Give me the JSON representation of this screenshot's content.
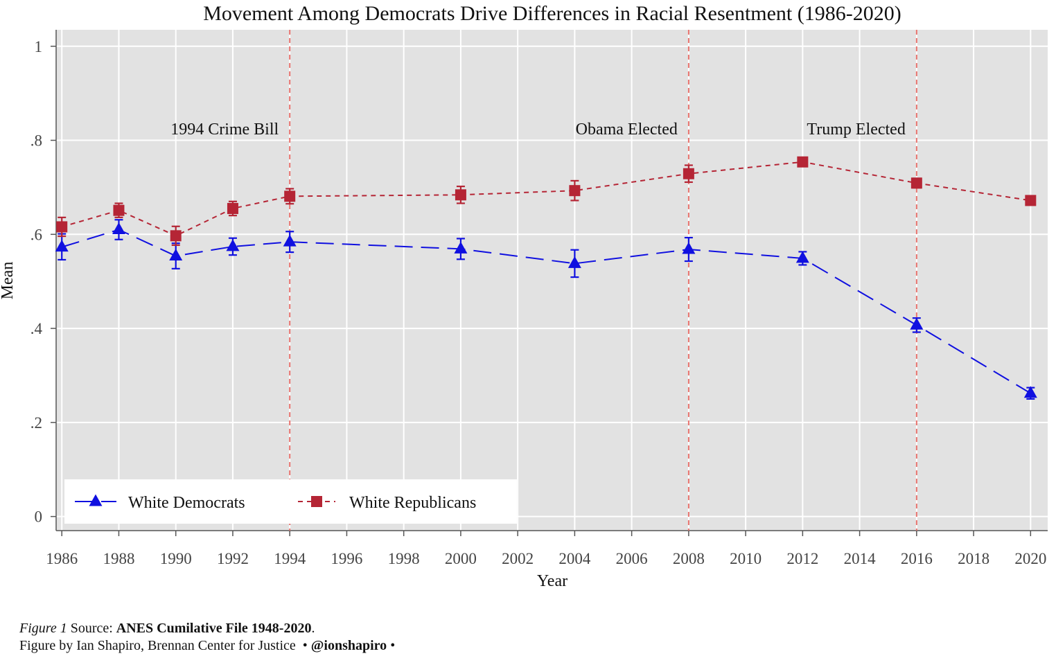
{
  "chart_data": {
    "type": "line",
    "title": "Movement Among Democrats Drive Differences in Racial Resentment (1986-2020)",
    "xlabel": "Year",
    "ylabel": "Mean",
    "xlim": [
      1985.8,
      2020.6
    ],
    "ylim": [
      -0.03,
      1.035
    ],
    "x_ticks": [
      1986,
      1988,
      1990,
      1992,
      1994,
      1996,
      1998,
      2000,
      2002,
      2004,
      2006,
      2008,
      2010,
      2012,
      2014,
      2016,
      2018,
      2020
    ],
    "x_tick_labels": [
      "1986",
      "1988",
      "1990",
      "1992",
      "1994",
      "1996",
      "1998",
      "2000",
      "2002",
      "2004",
      "2006",
      "2008",
      "2010",
      "2012",
      "2014",
      "2016",
      "2018",
      "2020"
    ],
    "y_ticks": [
      0,
      0.2,
      0.4,
      0.6,
      0.8,
      1
    ],
    "y_tick_labels": [
      "0",
      ".2",
      ".4",
      ".6",
      ".8",
      "1"
    ],
    "grid": true,
    "legend_position": "bottom-left",
    "reference_lines": [
      {
        "x": 1994,
        "label": "1994 Crime Bill"
      },
      {
        "x": 2008,
        "label": "Obama Elected"
      },
      {
        "x": 2016,
        "label": "Trump Elected"
      }
    ],
    "series": [
      {
        "name": "White Democrats",
        "color": "#1010e0",
        "marker": "triangle",
        "line_style": "long-dash",
        "x": [
          1986,
          1988,
          1990,
          1992,
          1994,
          2000,
          2004,
          2008,
          2012,
          2016,
          2020
        ],
        "values": [
          0.573,
          0.61,
          0.554,
          0.574,
          0.584,
          0.569,
          0.538,
          0.568,
          0.549,
          0.407,
          0.262
        ],
        "ci_low": [
          0.546,
          0.589,
          0.527,
          0.556,
          0.562,
          0.547,
          0.509,
          0.543,
          0.535,
          0.392,
          0.25
        ],
        "ci_high": [
          0.601,
          0.631,
          0.581,
          0.592,
          0.606,
          0.591,
          0.567,
          0.593,
          0.563,
          0.422,
          0.274
        ]
      },
      {
        "name": "White Republicans",
        "color": "#b52535",
        "marker": "square",
        "line_style": "short-dash",
        "x": [
          1986,
          1988,
          1990,
          1992,
          1994,
          2000,
          2004,
          2008,
          2012,
          2016,
          2020
        ],
        "values": [
          0.616,
          0.651,
          0.597,
          0.655,
          0.681,
          0.684,
          0.693,
          0.729,
          0.754,
          0.709,
          0.672
        ],
        "ci_low": [
          0.596,
          0.636,
          0.577,
          0.64,
          0.665,
          0.666,
          0.672,
          0.711,
          0.745,
          0.699,
          0.664
        ],
        "ci_high": [
          0.636,
          0.666,
          0.617,
          0.67,
          0.697,
          0.702,
          0.714,
          0.747,
          0.763,
          0.719,
          0.68
        ]
      }
    ]
  },
  "caption": {
    "figure_label": "Figure 1",
    "source_prefix": " Source: ",
    "source_bold": "ANES Cumilative File 1948-2020",
    "source_suffix": ".",
    "credit": "Figure by Ian Shapiro, Brennan Center for Justice  • ",
    "handle": "@ionshapiro",
    "credit_suffix": " •"
  }
}
